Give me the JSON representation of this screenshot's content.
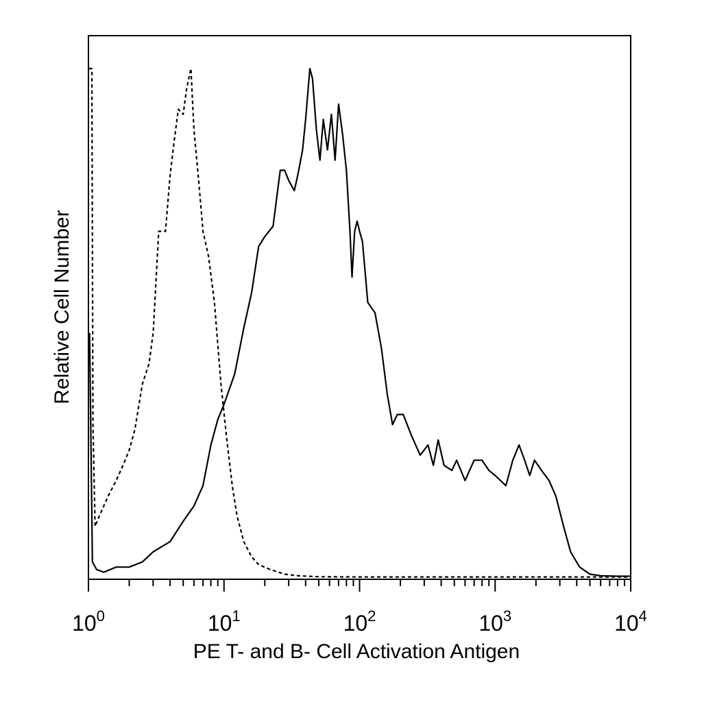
{
  "chart_data": {
    "type": "line",
    "title": "",
    "xlabel": "PE T- and B- Cell Activation Antigen",
    "ylabel": "Relative Cell Number",
    "x_scale": "log10",
    "xlim": [
      1,
      10000
    ],
    "ylim": [
      0,
      100
    ],
    "y_ticks_shown": false,
    "grid": false,
    "legend": "none",
    "x_ticks": [
      {
        "base": "10",
        "exp": "0",
        "value": 1
      },
      {
        "base": "10",
        "exp": "1",
        "value": 10
      },
      {
        "base": "10",
        "exp": "2",
        "value": 100
      },
      {
        "base": "10",
        "exp": "3",
        "value": 1000
      },
      {
        "base": "10",
        "exp": "4",
        "value": 10000
      }
    ],
    "series": [
      {
        "style": "dashed",
        "color": "#000000",
        "points": [
          [
            1.01,
            100
          ],
          [
            1.06,
            100
          ],
          [
            1.08,
            30
          ],
          [
            1.12,
            10
          ],
          [
            1.2,
            12
          ],
          [
            1.4,
            16
          ],
          [
            1.6,
            19
          ],
          [
            1.8,
            22
          ],
          [
            2.0,
            25
          ],
          [
            2.2,
            29
          ],
          [
            2.5,
            38
          ],
          [
            2.8,
            42
          ],
          [
            3.0,
            48
          ],
          [
            3.3,
            68
          ],
          [
            3.7,
            68
          ],
          [
            4.0,
            79
          ],
          [
            4.3,
            86
          ],
          [
            4.6,
            92
          ],
          [
            5.0,
            91
          ],
          [
            5.3,
            96
          ],
          [
            5.7,
            100
          ],
          [
            6.0,
            88
          ],
          [
            6.5,
            78
          ],
          [
            7.0,
            68
          ],
          [
            7.7,
            63
          ],
          [
            8.5,
            54
          ],
          [
            9.5,
            38
          ],
          [
            10.5,
            27
          ],
          [
            11.5,
            18
          ],
          [
            12.5,
            12
          ],
          [
            14,
            7
          ],
          [
            16,
            4
          ],
          [
            18,
            2.5
          ],
          [
            22,
            1.5
          ],
          [
            28,
            0.6
          ],
          [
            35,
            0.3
          ],
          [
            50,
            0.1
          ],
          [
            100,
            0.05
          ],
          [
            10000,
            0.05
          ]
        ]
      },
      {
        "style": "solid",
        "color": "#000000",
        "points": [
          [
            1.02,
            48
          ],
          [
            1.07,
            3
          ],
          [
            1.15,
            1.5
          ],
          [
            1.3,
            1
          ],
          [
            1.6,
            2
          ],
          [
            2.0,
            2
          ],
          [
            2.5,
            3
          ],
          [
            3.0,
            5
          ],
          [
            4.0,
            7
          ],
          [
            5.0,
            11
          ],
          [
            6.0,
            14
          ],
          [
            7.0,
            18
          ],
          [
            8.0,
            26
          ],
          [
            9.0,
            31
          ],
          [
            10,
            34
          ],
          [
            12,
            40
          ],
          [
            14,
            49
          ],
          [
            16,
            56
          ],
          [
            18,
            65
          ],
          [
            20,
            67
          ],
          [
            23,
            69
          ],
          [
            26,
            80
          ],
          [
            28,
            80
          ],
          [
            30,
            78
          ],
          [
            33,
            76
          ],
          [
            35,
            79
          ],
          [
            38,
            84
          ],
          [
            40,
            90
          ],
          [
            43,
            100
          ],
          [
            45,
            98
          ],
          [
            48,
            88
          ],
          [
            51,
            82
          ],
          [
            54,
            90
          ],
          [
            58,
            84
          ],
          [
            62,
            91
          ],
          [
            66,
            82
          ],
          [
            70,
            93
          ],
          [
            75,
            87
          ],
          [
            80,
            80
          ],
          [
            85,
            68
          ],
          [
            88,
            59
          ],
          [
            92,
            68
          ],
          [
            96,
            70
          ],
          [
            100,
            68
          ],
          [
            105,
            66
          ],
          [
            115,
            54
          ],
          [
            130,
            52
          ],
          [
            145,
            45
          ],
          [
            160,
            36
          ],
          [
            175,
            30
          ],
          [
            190,
            32
          ],
          [
            210,
            32
          ],
          [
            240,
            28
          ],
          [
            280,
            24
          ],
          [
            320,
            26
          ],
          [
            350,
            22
          ],
          [
            380,
            27
          ],
          [
            420,
            22
          ],
          [
            480,
            21
          ],
          [
            520,
            23
          ],
          [
            600,
            19
          ],
          [
            700,
            23
          ],
          [
            800,
            23
          ],
          [
            900,
            21
          ],
          [
            1000,
            20
          ],
          [
            1200,
            18
          ],
          [
            1350,
            23
          ],
          [
            1500,
            26
          ],
          [
            1650,
            23
          ],
          [
            1800,
            20
          ],
          [
            1950,
            23
          ],
          [
            2200,
            21
          ],
          [
            2500,
            19
          ],
          [
            2800,
            16
          ],
          [
            3200,
            10
          ],
          [
            3600,
            5
          ],
          [
            4200,
            2
          ],
          [
            5000,
            0.6
          ],
          [
            6000,
            0.3
          ],
          [
            8000,
            0.2
          ],
          [
            10000,
            0.2
          ]
        ]
      }
    ]
  }
}
